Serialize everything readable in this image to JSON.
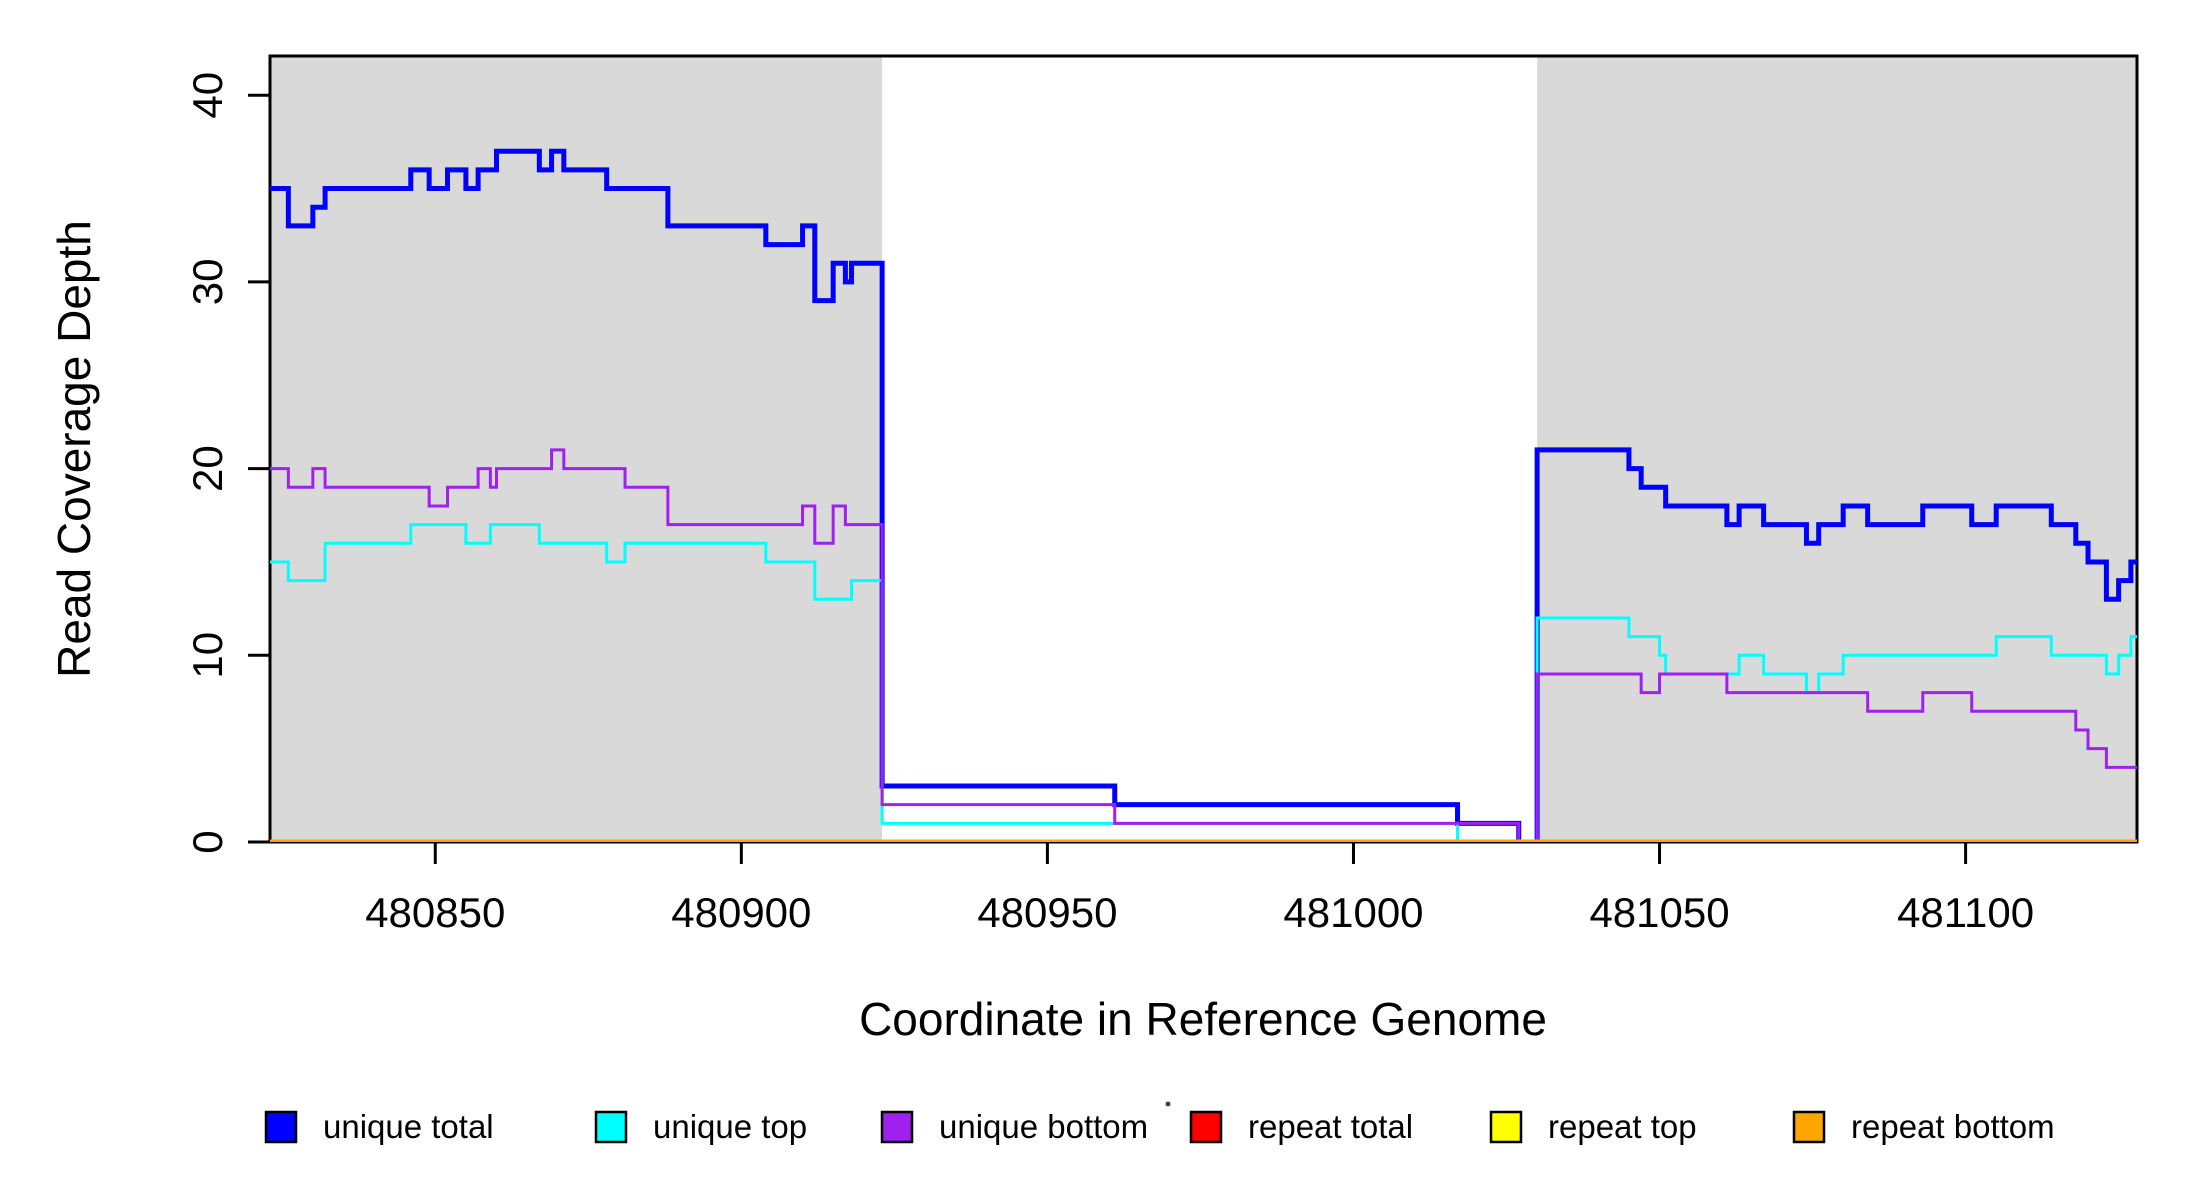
{
  "figure": {
    "x_title": "Coordinate in Reference Genome",
    "y_title": "Read Coverage Depth"
  },
  "colors": {
    "background": "#ffffff",
    "shaded_region": "#d9d9d9",
    "box": "#000000",
    "unique_total": "#0000ff",
    "unique_top": "#00ffff",
    "unique_bottom": "#a020f0",
    "repeat_total": "#ff0000",
    "repeat_top": "#ffff00",
    "repeat_bottom": "#ffa500"
  },
  "shaded_regions": [
    {
      "from": 480823,
      "to": 480923
    },
    {
      "from": 481030,
      "to": 481128
    }
  ],
  "legend": [
    {
      "label": "unique total",
      "color": "#0000ff"
    },
    {
      "label": "unique top",
      "color": "#00ffff"
    },
    {
      "label": "unique bottom",
      "color": "#a020f0"
    },
    {
      "label": "repeat total",
      "color": "#ff0000"
    },
    {
      "label": "repeat top",
      "color": "#ffff00"
    },
    {
      "label": "repeat bottom",
      "color": "#ffa500"
    }
  ],
  "chart_data": {
    "type": "line",
    "step": "post",
    "title": "",
    "xlabel": "Coordinate in Reference Genome",
    "ylabel": "Read Coverage Depth",
    "xlim": [
      480823,
      481128
    ],
    "ylim": [
      0,
      42.1
    ],
    "xticks": [
      480850,
      480900,
      480950,
      481000,
      481050,
      481100
    ],
    "yticks": [
      0,
      10,
      20,
      30,
      40
    ],
    "grid": false,
    "legend_position": "bottom",
    "series": [
      {
        "name": "unique total",
        "color": "#0000ff",
        "width": 5,
        "points": [
          [
            480823,
            35
          ],
          [
            480826,
            33
          ],
          [
            480830,
            34
          ],
          [
            480832,
            35
          ],
          [
            480846,
            36
          ],
          [
            480849,
            35
          ],
          [
            480852,
            36
          ],
          [
            480855,
            35
          ],
          [
            480857,
            36
          ],
          [
            480860,
            37
          ],
          [
            480867,
            36
          ],
          [
            480869,
            37
          ],
          [
            480871,
            36
          ],
          [
            480878,
            35
          ],
          [
            480888,
            33
          ],
          [
            480904,
            32
          ],
          [
            480910,
            33
          ],
          [
            480912,
            29
          ],
          [
            480915,
            31
          ],
          [
            480917,
            30
          ],
          [
            480918,
            31
          ],
          [
            480923,
            3
          ],
          [
            480961,
            2
          ],
          [
            481017,
            1
          ],
          [
            481027,
            0
          ],
          [
            481030,
            21
          ],
          [
            481045,
            20
          ],
          [
            481047,
            19
          ],
          [
            481051,
            18
          ],
          [
            481061,
            17
          ],
          [
            481063,
            18
          ],
          [
            481067,
            17
          ],
          [
            481074,
            16
          ],
          [
            481076,
            17
          ],
          [
            481080,
            18
          ],
          [
            481084,
            17
          ],
          [
            481093,
            18
          ],
          [
            481101,
            17
          ],
          [
            481105,
            18
          ],
          [
            481114,
            17
          ],
          [
            481118,
            16
          ],
          [
            481120,
            15
          ],
          [
            481123,
            13
          ],
          [
            481125,
            14
          ],
          [
            481127,
            15
          ],
          [
            481128,
            15
          ]
        ]
      },
      {
        "name": "unique top",
        "color": "#00ffff",
        "width": 3,
        "points": [
          [
            480823,
            15
          ],
          [
            480826,
            14
          ],
          [
            480832,
            16
          ],
          [
            480846,
            17
          ],
          [
            480855,
            16
          ],
          [
            480859,
            17
          ],
          [
            480867,
            16
          ],
          [
            480878,
            15
          ],
          [
            480881,
            16
          ],
          [
            480904,
            15
          ],
          [
            480912,
            13
          ],
          [
            480918,
            14
          ],
          [
            480923,
            1
          ],
          [
            481017,
            0
          ],
          [
            481030,
            12
          ],
          [
            481045,
            11
          ],
          [
            481050,
            10
          ],
          [
            481051,
            9
          ],
          [
            481063,
            10
          ],
          [
            481067,
            9
          ],
          [
            481074,
            8
          ],
          [
            481076,
            9
          ],
          [
            481080,
            10
          ],
          [
            481105,
            11
          ],
          [
            481114,
            10
          ],
          [
            481123,
            9
          ],
          [
            481125,
            10
          ],
          [
            481127,
            11
          ],
          [
            481128,
            11
          ]
        ]
      },
      {
        "name": "unique bottom",
        "color": "#a020f0",
        "width": 3,
        "points": [
          [
            480823,
            20
          ],
          [
            480826,
            19
          ],
          [
            480830,
            20
          ],
          [
            480832,
            19
          ],
          [
            480849,
            18
          ],
          [
            480852,
            19
          ],
          [
            480857,
            20
          ],
          [
            480859,
            19
          ],
          [
            480860,
            20
          ],
          [
            480869,
            21
          ],
          [
            480871,
            20
          ],
          [
            480881,
            19
          ],
          [
            480888,
            17
          ],
          [
            480910,
            18
          ],
          [
            480912,
            16
          ],
          [
            480915,
            18
          ],
          [
            480917,
            17
          ],
          [
            480923,
            2
          ],
          [
            480961,
            1
          ],
          [
            481027,
            0
          ],
          [
            481030,
            9
          ],
          [
            481047,
            8
          ],
          [
            481050,
            9
          ],
          [
            481061,
            8
          ],
          [
            481084,
            7
          ],
          [
            481093,
            8
          ],
          [
            481101,
            7
          ],
          [
            481118,
            6
          ],
          [
            481120,
            5
          ],
          [
            481123,
            4
          ],
          [
            481128,
            4
          ]
        ]
      },
      {
        "name": "repeat total",
        "color": "#ff0000",
        "width": 3,
        "points": [
          [
            480823,
            0
          ],
          [
            481128,
            0
          ]
        ]
      },
      {
        "name": "repeat top",
        "color": "#ffff00",
        "width": 3,
        "points": [
          [
            480823,
            0
          ],
          [
            481128,
            0
          ]
        ]
      },
      {
        "name": "repeat bottom",
        "color": "#ffa500",
        "width": 5,
        "points": [
          [
            480823,
            0
          ],
          [
            481128,
            0
          ]
        ]
      }
    ]
  }
}
